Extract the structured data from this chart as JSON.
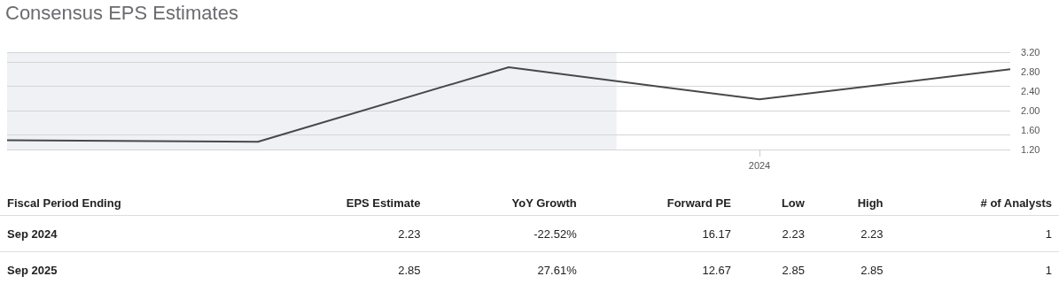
{
  "chart_data": [
    {
      "type": "line",
      "title": "Consensus EPS Estimates",
      "categories": [
        null,
        null,
        null,
        "2024",
        null
      ],
      "series": [
        {
          "color": "#48484a",
          "values": [
            1.39,
            1.36,
            2.89,
            2.23,
            2.85
          ]
        }
      ],
      "ylim": [
        1.2,
        3.2
      ],
      "yticks": [
        {
          "value": 1.2,
          "label": "1.20"
        },
        {
          "value": 1.6,
          "label": "1.60"
        },
        {
          "value": 2.0,
          "label": "2.00"
        },
        {
          "value": 2.4,
          "label": "2.40"
        },
        {
          "value": 2.8,
          "label": "2.80"
        },
        {
          "value": 3.2,
          "label": "3.20"
        }
      ],
      "grid": "y",
      "marker": "none",
      "line_style": "solid"
    },
    {
      "type": "other",
      "categories": [
        "Fiscal Period Ending",
        "EPS Estimate",
        "YoY Growth",
        "Forward PE",
        "Low",
        "High",
        "# of Analysts"
      ],
      "y_categories": [
        "Sep 2024",
        "Sep 2025"
      ],
      "cell_labels": [
        [
          "2.23",
          "-22.52%",
          "16.17",
          "2.23",
          "2.23",
          "1"
        ],
        [
          "2.85",
          "27.61%",
          "12.67",
          "2.85",
          "2.85",
          "1"
        ]
      ]
    }
  ]
}
